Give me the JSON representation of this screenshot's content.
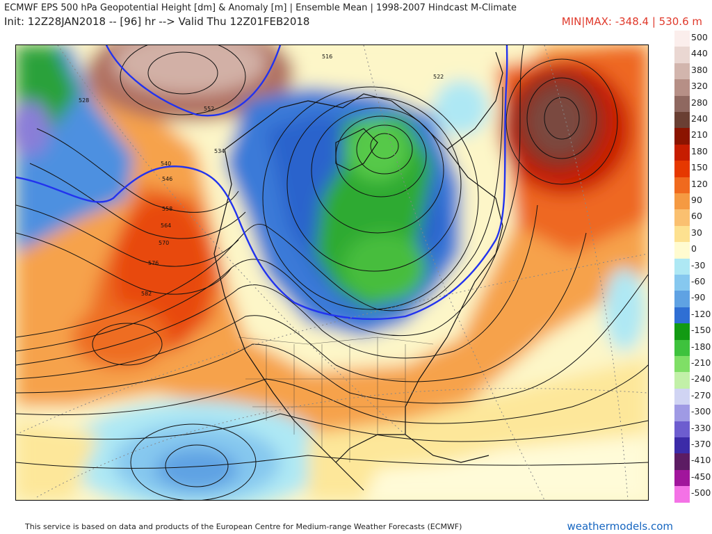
{
  "header": {
    "title": "ECMWF EPS 500 hPa Geopotential Height [dm] & Anomaly [m] | Ensemble Mean | 1998-2007 Hindcast M-Climate",
    "init_line": "Init: 12Z28JAN2018 -- [96] hr --> Valid Thu 12Z01FEB2018",
    "minmax": "MIN|MAX: -348.4 | 530.6 m"
  },
  "map": {
    "contour_labels": [
      "516",
      "522",
      "528",
      "534",
      "540",
      "546",
      "552",
      "558",
      "564",
      "570",
      "576",
      "582"
    ]
  },
  "legend": {
    "labels": [
      "500",
      "440",
      "380",
      "320",
      "280",
      "240",
      "210",
      "180",
      "150",
      "120",
      "90",
      "60",
      "30",
      "0",
      "-30",
      "-60",
      "-90",
      "-120",
      "-150",
      "-180",
      "-210",
      "-240",
      "-270",
      "-300",
      "-330",
      "-370",
      "-410",
      "-450",
      "-500"
    ],
    "colors": [
      "#fbeeec",
      "#ead7d2",
      "#d2b5ad",
      "#b68f86",
      "#8f6860",
      "#6a3f33",
      "#8b1400",
      "#c61d00",
      "#e63800",
      "#f06a1e",
      "#f59a42",
      "#fac070",
      "#fde190",
      "#fffbd0",
      "#aee8f4",
      "#86c8ef",
      "#5fa2e3",
      "#2f6fd4",
      "#129a13",
      "#3ec23d",
      "#7fdf66",
      "#c2f0a8",
      "#d0d4f3",
      "#9f9ae4",
      "#6d5dcf",
      "#3c2ba8",
      "#5c1c63",
      "#a1159c",
      "#f472e6"
    ]
  },
  "footer": {
    "note": "This service is based on data and products of the European Centre for Medium-range Weather Forecasts (ECMWF)",
    "brand": "weathermodels.com"
  }
}
